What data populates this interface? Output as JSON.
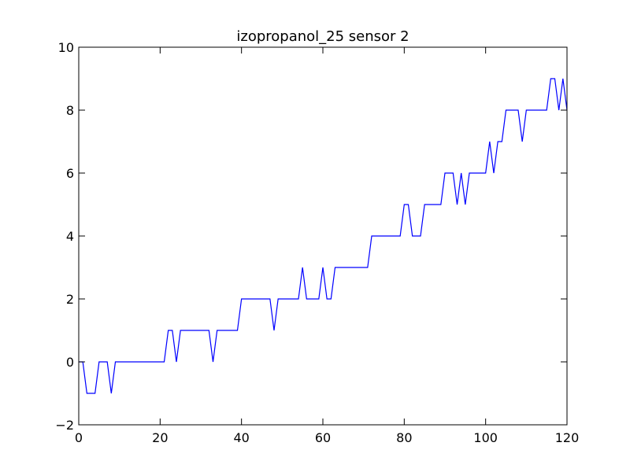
{
  "chart_data": {
    "type": "line",
    "title": "izopropanol_25 sensor 2",
    "xlabel": "",
    "ylabel": "",
    "xlim": [
      0,
      120
    ],
    "ylim": [
      -2,
      10
    ],
    "grid": false,
    "x_ticks": [
      0,
      20,
      40,
      60,
      80,
      100,
      120
    ],
    "y_ticks": [
      -2,
      0,
      2,
      4,
      6,
      8,
      10
    ],
    "x_tick_labels": [
      "0",
      "20",
      "40",
      "60",
      "80",
      "100",
      "120"
    ],
    "y_tick_labels": [
      "−2",
      "0",
      "2",
      "4",
      "6",
      "8",
      "10"
    ],
    "series": [
      {
        "color": "#0000ff",
        "x": [
          0,
          1,
          2,
          3,
          4,
          5,
          6,
          7,
          8,
          9,
          10,
          11,
          12,
          13,
          14,
          15,
          16,
          17,
          18,
          19,
          20,
          21,
          22,
          23,
          24,
          25,
          26,
          27,
          28,
          29,
          30,
          31,
          32,
          33,
          34,
          35,
          36,
          37,
          38,
          39,
          40,
          41,
          42,
          43,
          44,
          45,
          46,
          47,
          48,
          49,
          50,
          51,
          52,
          53,
          54,
          55,
          56,
          57,
          58,
          59,
          60,
          61,
          62,
          63,
          64,
          65,
          66,
          67,
          68,
          69,
          70,
          71,
          72,
          73,
          74,
          75,
          76,
          77,
          78,
          79,
          80,
          81,
          82,
          83,
          84,
          85,
          86,
          87,
          88,
          89,
          90,
          91,
          92,
          93,
          94,
          95,
          96,
          97,
          98,
          99,
          100,
          101,
          102,
          103,
          104,
          105,
          106,
          107,
          108,
          109,
          110,
          111,
          112,
          113,
          114,
          115,
          116,
          117,
          118,
          119,
          120
        ],
        "y": [
          0,
          0,
          -1,
          -1,
          -1,
          0,
          0,
          0,
          -1,
          0,
          0,
          0,
          0,
          0,
          0,
          0,
          0,
          0,
          0,
          0,
          0,
          0,
          1,
          1,
          0,
          1,
          1,
          1,
          1,
          1,
          1,
          1,
          1,
          0,
          1,
          1,
          1,
          1,
          1,
          1,
          2,
          2,
          2,
          2,
          2,
          2,
          2,
          2,
          1,
          2,
          2,
          2,
          2,
          2,
          2,
          3,
          2,
          2,
          2,
          2,
          3,
          2,
          2,
          3,
          3,
          3,
          3,
          3,
          3,
          3,
          3,
          3,
          4,
          4,
          4,
          4,
          4,
          4,
          4,
          4,
          5,
          5,
          4,
          4,
          4,
          5,
          5,
          5,
          5,
          5,
          6,
          6,
          6,
          5,
          6,
          5,
          6,
          6,
          6,
          6,
          6,
          7,
          6,
          7,
          7,
          8,
          8,
          8,
          8,
          7,
          8,
          8,
          8,
          8,
          8,
          8,
          9,
          9,
          8,
          9,
          8
        ]
      }
    ]
  }
}
